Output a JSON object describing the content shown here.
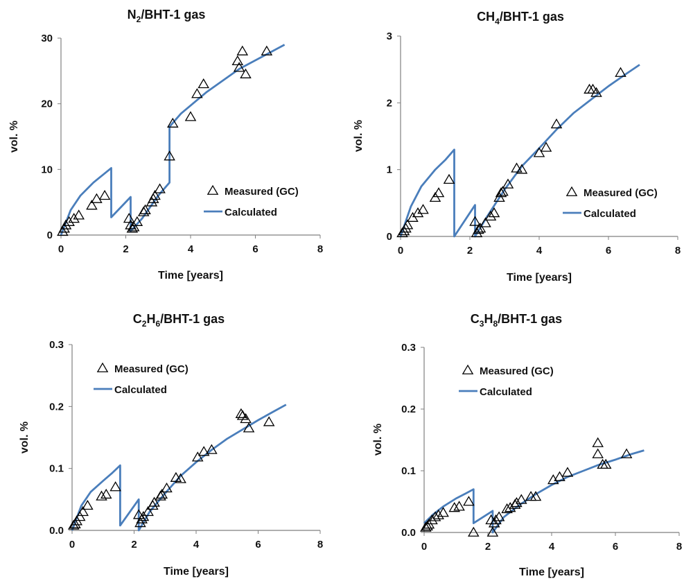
{
  "colors": {
    "calculated": "#4a7ebb",
    "measured": "#000000",
    "axis": "#7f7f7f"
  },
  "chart_data": [
    {
      "type": "scatter",
      "title": {
        "pre": "N",
        "sub": "2",
        "post": "/BHT-1 gas"
      },
      "xlabel": "Time [years]",
      "ylabel": "vol. %",
      "xlim": [
        0,
        8
      ],
      "ylim": [
        0,
        30
      ],
      "xticks": [
        "0",
        "2",
        "4",
        "6",
        "8"
      ],
      "yticks": [
        "0",
        "10",
        "20",
        "30"
      ],
      "legend": {
        "position": "center-right",
        "measured": "Measured (GC)",
        "calculated": "Calculated"
      },
      "series": [
        {
          "name": "Measured (GC)",
          "kind": "scatter",
          "marker": "open-triangle",
          "x": [
            0.05,
            0.1,
            0.15,
            0.25,
            0.4,
            0.55,
            0.95,
            1.1,
            1.35,
            2.1,
            2.15,
            2.2,
            2.25,
            2.35,
            2.55,
            2.6,
            2.8,
            2.85,
            2.9,
            3.05,
            3.35,
            3.45,
            4.0,
            4.2,
            4.4,
            5.45,
            5.5,
            5.6,
            5.7,
            6.35
          ],
          "y": [
            0.5,
            1.0,
            1.5,
            2.0,
            2.5,
            3.0,
            4.5,
            5.5,
            6.0,
            2.5,
            1.5,
            1.0,
            1.2,
            2.0,
            3.5,
            3.8,
            5.0,
            5.5,
            6.0,
            7.0,
            12.0,
            17.0,
            18.0,
            21.5,
            23.0,
            26.5,
            25.5,
            28.0,
            24.5,
            28.0
          ]
        },
        {
          "name": "Calculated",
          "kind": "line",
          "x": [
            0,
            0.3,
            0.6,
            1.0,
            1.3,
            1.55,
            1.55,
            2.15,
            2.15,
            2.5,
            3.0,
            3.35,
            3.35,
            3.7,
            4.5,
            5.5,
            6.9
          ],
          "y": [
            0,
            3.8,
            6.0,
            8.0,
            9.2,
            10.2,
            2.7,
            5.8,
            0.6,
            2.5,
            6.0,
            8.0,
            16.5,
            18.5,
            21.8,
            25.3,
            29.0
          ]
        }
      ]
    },
    {
      "type": "scatter",
      "title": {
        "pre": "CH",
        "sub": "4",
        "post": "/BHT-1 gas"
      },
      "xlabel": "Time [years]",
      "ylabel": "vol. %",
      "xlim": [
        0,
        8
      ],
      "ylim": [
        0,
        3
      ],
      "xticks": [
        "0",
        "2",
        "4",
        "6",
        "8"
      ],
      "yticks": [
        "0",
        "1",
        "2",
        "3"
      ],
      "legend": {
        "position": "center-right",
        "measured": "Measured (GC)",
        "calculated": "Calculated"
      },
      "series": [
        {
          "name": "Measured (GC)",
          "kind": "scatter",
          "marker": "open-triangle",
          "x": [
            0.05,
            0.1,
            0.15,
            0.2,
            0.35,
            0.5,
            0.65,
            1.0,
            1.1,
            1.4,
            2.15,
            2.2,
            2.25,
            2.3,
            2.45,
            2.6,
            2.7,
            2.85,
            2.9,
            2.95,
            3.1,
            3.35,
            3.5,
            4.0,
            4.2,
            4.5,
            5.45,
            5.55,
            5.65,
            6.35
          ],
          "y": [
            0.05,
            0.08,
            0.12,
            0.17,
            0.28,
            0.35,
            0.4,
            0.58,
            0.65,
            0.85,
            0.22,
            0.05,
            0.1,
            0.12,
            0.2,
            0.3,
            0.35,
            0.58,
            0.65,
            0.67,
            0.78,
            1.02,
            1.0,
            1.25,
            1.33,
            1.68,
            2.2,
            2.2,
            2.15,
            2.45
          ]
        },
        {
          "name": "Calculated",
          "kind": "line",
          "x": [
            0,
            0.3,
            0.6,
            1.0,
            1.3,
            1.55,
            1.55,
            2.15,
            2.15,
            2.5,
            3.0,
            3.5,
            4.0,
            4.5,
            5.0,
            5.5,
            6.0,
            6.5,
            6.9
          ],
          "y": [
            0,
            0.45,
            0.75,
            1.0,
            1.15,
            1.3,
            0.0,
            0.47,
            0.0,
            0.3,
            0.7,
            1.05,
            1.32,
            1.6,
            1.85,
            2.05,
            2.25,
            2.43,
            2.57
          ]
        }
      ]
    },
    {
      "type": "scatter",
      "title": {
        "pre": "C",
        "sub": "2",
        "mid": "H",
        "sub2": "6",
        "post": "/BHT-1 gas"
      },
      "xlabel": "Time [years]",
      "ylabel": "vol. %",
      "xlim": [
        0,
        8
      ],
      "ylim": [
        0,
        0.3
      ],
      "xticks": [
        "0",
        "2",
        "4",
        "6",
        "8"
      ],
      "yticks": [
        "0.0",
        "0.1",
        "0.2",
        "0.3"
      ],
      "legend": {
        "position": "top-left",
        "measured": "Measured (GC)",
        "calculated": "Calculated"
      },
      "series": [
        {
          "name": "Measured (GC)",
          "kind": "scatter",
          "marker": "open-triangle",
          "x": [
            0.05,
            0.1,
            0.15,
            0.25,
            0.35,
            0.5,
            0.95,
            1.1,
            1.4,
            2.15,
            2.2,
            2.25,
            2.3,
            2.45,
            2.6,
            2.65,
            2.85,
            2.9,
            3.05,
            3.35,
            3.5,
            4.05,
            4.25,
            4.5,
            5.45,
            5.5,
            5.6,
            5.7,
            6.35
          ],
          "y": [
            0.008,
            0.01,
            0.015,
            0.022,
            0.03,
            0.04,
            0.055,
            0.058,
            0.07,
            0.025,
            0.012,
            0.018,
            0.022,
            0.03,
            0.04,
            0.045,
            0.055,
            0.058,
            0.068,
            0.085,
            0.083,
            0.118,
            0.127,
            0.13,
            0.188,
            0.185,
            0.18,
            0.165,
            0.175
          ]
        },
        {
          "name": "Calculated",
          "kind": "line",
          "x": [
            0,
            0.3,
            0.6,
            1.0,
            1.3,
            1.55,
            1.55,
            2.15,
            2.15,
            2.5,
            3.0,
            3.5,
            4.0,
            4.5,
            5.0,
            5.5,
            6.0,
            6.5,
            6.9
          ],
          "y": [
            0,
            0.04,
            0.062,
            0.08,
            0.093,
            0.105,
            0.008,
            0.05,
            0.0,
            0.03,
            0.06,
            0.088,
            0.11,
            0.13,
            0.148,
            0.163,
            0.178,
            0.192,
            0.203
          ]
        }
      ]
    },
    {
      "type": "scatter",
      "title": {
        "pre": "C",
        "sub": "3",
        "mid": "H",
        "sub2": "8",
        "post": "/BHT-1 gas"
      },
      "xlabel": "Time [years]",
      "ylabel": "vol. %",
      "xlim": [
        0,
        8
      ],
      "ylim": [
        0,
        0.3
      ],
      "xticks": [
        "0",
        "2",
        "4",
        "6",
        "8"
      ],
      "yticks": [
        "0.0",
        "0.1",
        "0.2",
        "0.3"
      ],
      "legend": {
        "position": "top-left",
        "measured": "Measured (GC)",
        "calculated": "Calculated"
      },
      "series": [
        {
          "name": "Measured (GC)",
          "kind": "scatter",
          "marker": "open-triangle",
          "x": [
            0.05,
            0.1,
            0.15,
            0.25,
            0.35,
            0.45,
            0.6,
            0.95,
            1.1,
            1.4,
            1.55,
            2.1,
            2.15,
            2.2,
            2.25,
            2.35,
            2.6,
            2.7,
            2.85,
            2.9,
            3.05,
            3.35,
            3.5,
            4.05,
            4.25,
            4.5,
            5.45,
            5.45,
            5.6,
            5.7,
            6.35
          ],
          "y": [
            0.008,
            0.01,
            0.013,
            0.02,
            0.025,
            0.028,
            0.032,
            0.04,
            0.042,
            0.05,
            0.0,
            0.02,
            0.0,
            0.015,
            0.02,
            0.025,
            0.038,
            0.04,
            0.045,
            0.048,
            0.053,
            0.058,
            0.058,
            0.085,
            0.09,
            0.097,
            0.145,
            0.127,
            0.11,
            0.11,
            0.127
          ]
        },
        {
          "name": "Calculated",
          "kind": "line",
          "x": [
            0,
            0.3,
            0.6,
            1.0,
            1.3,
            1.55,
            1.55,
            2.15,
            2.15,
            2.5,
            3.0,
            3.5,
            4.0,
            4.5,
            5.0,
            5.5,
            6.0,
            6.5,
            6.9
          ],
          "y": [
            0.015,
            0.03,
            0.042,
            0.055,
            0.063,
            0.07,
            0.015,
            0.035,
            0.0,
            0.025,
            0.045,
            0.062,
            0.077,
            0.09,
            0.1,
            0.11,
            0.118,
            0.127,
            0.133
          ]
        }
      ]
    }
  ]
}
